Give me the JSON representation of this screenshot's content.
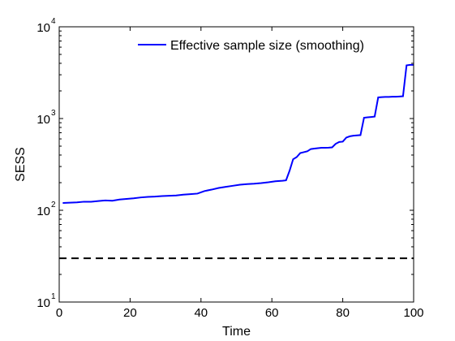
{
  "chart_data": {
    "type": "line",
    "xlabel": "Time",
    "ylabel": "SESS",
    "xlim": [
      0,
      100
    ],
    "ylim": [
      10,
      10000
    ],
    "yscale": "log",
    "xticks": [
      0,
      20,
      40,
      60,
      80,
      100
    ],
    "yticks": [
      {
        "value": 10,
        "base": "10",
        "exp": "1"
      },
      {
        "value": 100,
        "base": "10",
        "exp": "2"
      },
      {
        "value": 1000,
        "base": "10",
        "exp": "3"
      },
      {
        "value": 10000,
        "base": "10",
        "exp": "4"
      }
    ],
    "grid": false,
    "legend_position": "top-right",
    "series": [
      {
        "name": "Effective sample size (smoothing)",
        "color": "#0000ff",
        "style": "solid",
        "x": [
          1,
          3,
          5,
          7,
          9,
          11,
          13,
          15,
          17,
          19,
          21,
          23,
          25,
          27,
          29,
          31,
          33,
          35,
          37,
          39,
          41,
          43,
          45,
          47,
          49,
          51,
          53,
          55,
          57,
          59,
          61,
          63,
          64,
          65,
          66,
          67,
          68,
          69,
          70,
          71,
          72,
          73,
          74,
          75,
          76,
          77,
          78,
          79,
          80,
          81,
          82,
          83,
          84,
          85,
          86,
          87,
          88,
          89,
          90,
          91,
          92,
          93,
          94,
          95,
          96,
          97,
          98,
          99,
          100
        ],
        "y": [
          120,
          121,
          122,
          124,
          124,
          126,
          128,
          127,
          131,
          133,
          135,
          138,
          140,
          141,
          143,
          144,
          145,
          148,
          150,
          152,
          162,
          168,
          175,
          180,
          185,
          190,
          193,
          195,
          198,
          202,
          207,
          210,
          212,
          270,
          360,
          380,
          420,
          430,
          440,
          465,
          470,
          475,
          480,
          480,
          482,
          485,
          530,
          555,
          560,
          620,
          640,
          650,
          655,
          660,
          1020,
          1030,
          1040,
          1050,
          1700,
          1710,
          1720,
          1720,
          1730,
          1730,
          1740,
          1750,
          3800,
          3850,
          3850
        ]
      },
      {
        "name": "",
        "color": "#000000",
        "style": "dashed",
        "x": [
          0,
          100
        ],
        "y": [
          30,
          30
        ]
      }
    ]
  }
}
